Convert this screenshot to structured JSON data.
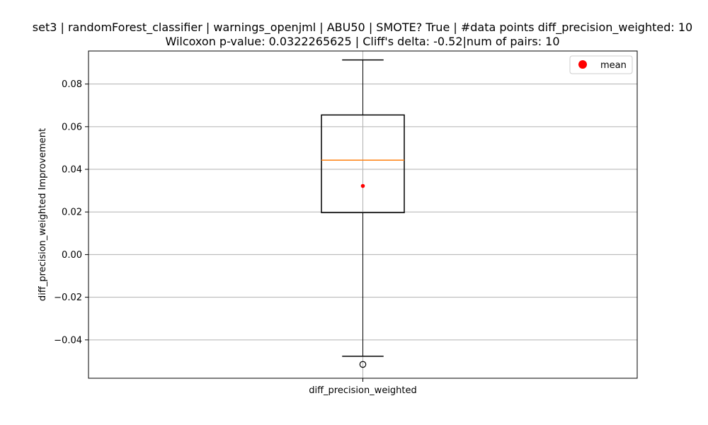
{
  "chart_data": {
    "type": "box",
    "title_line1": "set3 | randomForest_classifier | warnings_openjml | ABU50 | SMOTE? True | #data points diff_precision_weighted: 10",
    "title_line2": "Wilcoxon p-value: 0.0322265625 | Cliff's delta: -0.52|num of pairs: 10",
    "xlabel": "",
    "ylabel": "diff_precision_weighted Improvement",
    "category": "diff_precision_weighted",
    "ylim": [
      -0.058,
      0.0955
    ],
    "yticks": [
      -0.04,
      -0.02,
      0.0,
      0.02,
      0.04,
      0.06,
      0.08
    ],
    "ytick_labels": [
      "−0.04",
      "−0.02",
      "0.00",
      "0.02",
      "0.04",
      "0.06",
      "0.08"
    ],
    "grid": true,
    "legend": {
      "position": "top-right",
      "entries": [
        {
          "label": "mean",
          "color": "#ff0000",
          "marker": "circle"
        }
      ]
    },
    "box": {
      "whisker_low": -0.0477,
      "q1": 0.0197,
      "median": 0.0443,
      "q3": 0.0655,
      "whisker_high": 0.0913,
      "mean": 0.0322,
      "outliers": [
        -0.0515
      ]
    },
    "colors": {
      "box": "#000000",
      "median": "#ff7f0e",
      "mean": "#ff0000",
      "grid": "#b0b0b0"
    }
  }
}
